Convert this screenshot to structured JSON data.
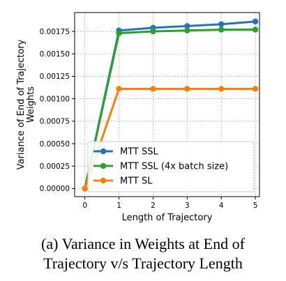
{
  "chart_data": {
    "type": "line",
    "xlabel": "Length of Trajectory",
    "ylabel_lines": [
      "Variance of End of Trajectory",
      "Weights"
    ],
    "x": [
      0,
      1,
      2,
      3,
      4,
      5
    ],
    "xticks": [
      "0",
      "1",
      "2",
      "3",
      "4",
      "5"
    ],
    "yticks": [
      "0.00000",
      "0.00025",
      "0.00050",
      "0.00075",
      "0.00100",
      "0.00125",
      "0.00150",
      "0.00175"
    ],
    "ytick_values": [
      0,
      0.00025,
      0.0005,
      0.00075,
      0.001,
      0.00125,
      0.0015,
      0.00175
    ],
    "xlim": [
      -0.3,
      5.12
    ],
    "ylim": [
      -9e-05,
      0.00196
    ],
    "grid": true,
    "legend_position": "lower-right",
    "series": [
      {
        "name": "MTT SSL",
        "color": "#1f77b4",
        "values": [
          0.0,
          0.00176,
          0.00179,
          0.00181,
          0.00183,
          0.00186
        ]
      },
      {
        "name": "MTT SSL (4x batch size)",
        "color": "#2ca02c",
        "values": [
          0.0,
          0.00173,
          0.00175,
          0.00176,
          0.00177,
          0.00177
        ]
      },
      {
        "name": "MTT SL",
        "color": "#ff7f0e",
        "values": [
          0.0,
          0.00111,
          0.00111,
          0.00111,
          0.00111,
          0.00111
        ]
      }
    ]
  },
  "caption": {
    "line1": "(a) Variance in Weights at End of",
    "line2": "Trajectory v/s Trajectory Length"
  }
}
